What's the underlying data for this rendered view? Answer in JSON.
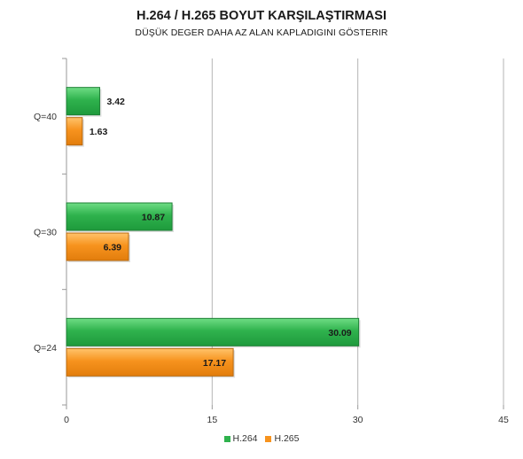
{
  "chart_data": {
    "type": "bar",
    "orientation": "horizontal",
    "title": "H.264 / H.265 BOYUT KARŞILAŞTIRMASI",
    "subtitle": "DÜŞÜK DEGER DAHA AZ ALAN KAPLADIGINI GÖSTERIR",
    "categories": [
      "Q=40",
      "Q=30",
      "Q=24"
    ],
    "series": [
      {
        "name": "H.264",
        "color": "#2fb24d",
        "values": [
          3.42,
          10.87,
          30.09
        ]
      },
      {
        "name": "H.265",
        "color": "#f7931e",
        "values": [
          1.63,
          6.39,
          17.17
        ]
      }
    ],
    "xlim": [
      0,
      45
    ],
    "xticks": [
      "0",
      "15",
      "30",
      "45"
    ],
    "grid": true,
    "legend_position": "bottom"
  }
}
